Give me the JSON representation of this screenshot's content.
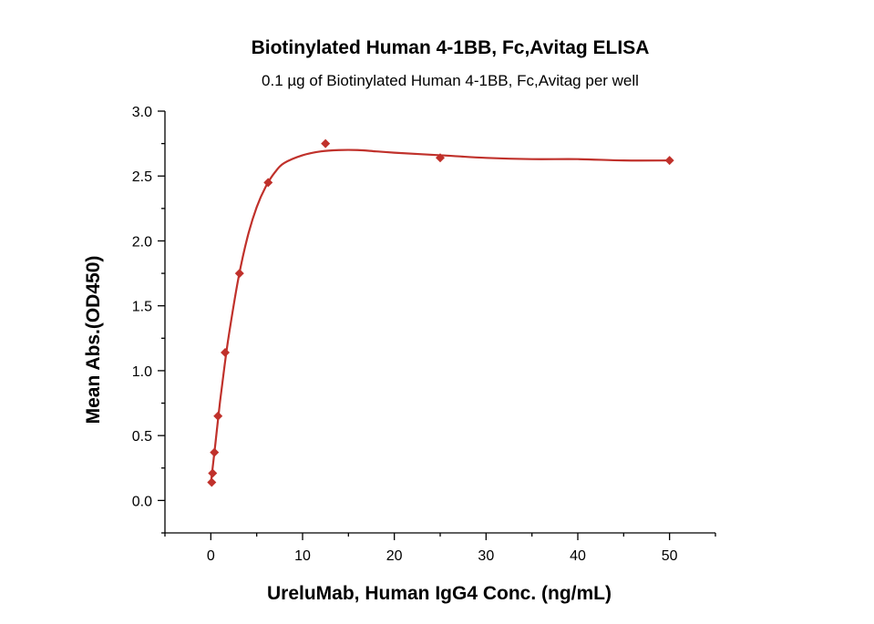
{
  "chart_data": {
    "type": "scatter",
    "title": "Biotinylated Human 4-1BB, Fc,Avitag ELISA",
    "subtitle": "0.1 µg of Biotinylated Human 4-1BB, Fc,Avitag per well",
    "xlabel": "UreluMab, Human IgG4 Conc. (ng/mL)",
    "ylabel": "Mean Abs.(OD450)",
    "xlim": [
      -5,
      55
    ],
    "ylim": [
      -0.25,
      3.0
    ],
    "x_ticks": [
      0,
      10,
      20,
      30,
      40,
      50
    ],
    "y_ticks": [
      0.0,
      0.5,
      1.0,
      1.5,
      2.0,
      2.5,
      3.0
    ],
    "x_tick_labels": [
      "0",
      "10",
      "20",
      "30",
      "40",
      "50"
    ],
    "y_tick_labels": [
      "0.0",
      "0.5",
      "1.0",
      "1.5",
      "2.0",
      "2.5",
      "3.0"
    ],
    "grid": false,
    "legend": "none",
    "color": "#c0312b",
    "marker": "diamond",
    "x": [
      0.098,
      0.195,
      0.39,
      0.78,
      1.56,
      3.125,
      6.25,
      12.5,
      25,
      50
    ],
    "y": [
      0.14,
      0.21,
      0.37,
      0.65,
      1.14,
      1.75,
      2.45,
      2.75,
      2.64,
      2.62
    ],
    "fit_curve": {
      "x": [
        0,
        0.5,
        1,
        1.5,
        2,
        3,
        4,
        5,
        6,
        7,
        8,
        10,
        12,
        14,
        16,
        18,
        20,
        25,
        30,
        35,
        40,
        45,
        50
      ],
      "y": [
        0.13,
        0.44,
        0.76,
        1.04,
        1.29,
        1.71,
        2.03,
        2.26,
        2.42,
        2.53,
        2.6,
        2.66,
        2.69,
        2.7,
        2.7,
        2.69,
        2.68,
        2.66,
        2.64,
        2.63,
        2.63,
        2.62,
        2.62
      ]
    }
  }
}
